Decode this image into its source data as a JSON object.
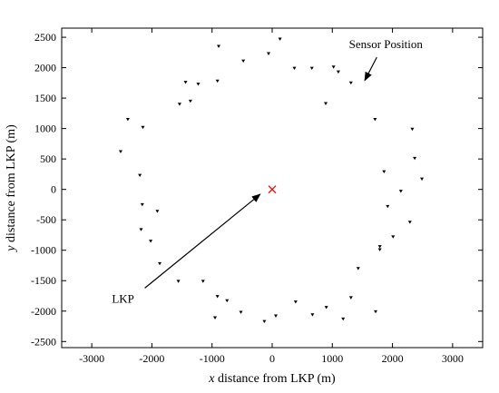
{
  "chart_data": {
    "type": "scatter",
    "xlabel_var": "x",
    "xlabel": " distance from LKP (m)",
    "ylabel_var": "y",
    "ylabel": " distance from LKP (m)",
    "xlim": [
      -3500,
      3500
    ],
    "ylim": [
      -2600,
      2650
    ],
    "xticks": [
      -3000,
      -2000,
      -1000,
      0,
      1000,
      2000,
      3000
    ],
    "yticks": [
      -2500,
      -2000,
      -1500,
      -1000,
      -500,
      0,
      500,
      1000,
      1500,
      2000,
      2500
    ],
    "grid": false,
    "series": [
      {
        "marker": "triangle",
        "color": "#000000",
        "points": [
          [
            130,
            2470
          ],
          [
            -60,
            2230
          ],
          [
            -890,
            2350
          ],
          [
            -480,
            2110
          ],
          [
            370,
            1990
          ],
          [
            660,
            1990
          ],
          [
            1020,
            2010
          ],
          [
            1100,
            1930
          ],
          [
            1310,
            1750
          ],
          [
            -1440,
            1760
          ],
          [
            -1230,
            1730
          ],
          [
            -910,
            1780
          ],
          [
            -1360,
            1450
          ],
          [
            -1540,
            1400
          ],
          [
            890,
            1410
          ],
          [
            -2400,
            1150
          ],
          [
            -2150,
            1020
          ],
          [
            1710,
            1150
          ],
          [
            2330,
            990
          ],
          [
            -2520,
            620
          ],
          [
            2370,
            510
          ],
          [
            1860,
            290
          ],
          [
            2490,
            170
          ],
          [
            -2200,
            230
          ],
          [
            2140,
            -30
          ],
          [
            -2160,
            -250
          ],
          [
            -1910,
            -360
          ],
          [
            1920,
            -280
          ],
          [
            2290,
            -540
          ],
          [
            -2180,
            -660
          ],
          [
            -2020,
            -850
          ],
          [
            2010,
            -780
          ],
          [
            1790,
            -940
          ],
          [
            1790,
            -990
          ],
          [
            -1870,
            -1220
          ],
          [
            1430,
            -1300
          ],
          [
            -1560,
            -1510
          ],
          [
            -1150,
            -1510
          ],
          [
            -910,
            -1760
          ],
          [
            -750,
            -1830
          ],
          [
            -950,
            -2110
          ],
          [
            -520,
            -2020
          ],
          [
            -130,
            -2170
          ],
          [
            60,
            -2080
          ],
          [
            390,
            -1850
          ],
          [
            900,
            -1940
          ],
          [
            1310,
            -1780
          ],
          [
            670,
            -2060
          ],
          [
            1180,
            -2130
          ],
          [
            1720,
            -2010
          ]
        ]
      }
    ],
    "lkp_marker": {
      "x": 0,
      "y": 0,
      "symbol": "×",
      "color": "#ff0000"
    },
    "annotations": [
      {
        "text": "Sensor Position",
        "x": 1890,
        "y": 2320,
        "arrow_to": [
          1540,
          1790
        ]
      },
      {
        "text": "LKP",
        "x": -2480,
        "y": -1860,
        "arrow_to": [
          -200,
          -80
        ]
      }
    ]
  }
}
